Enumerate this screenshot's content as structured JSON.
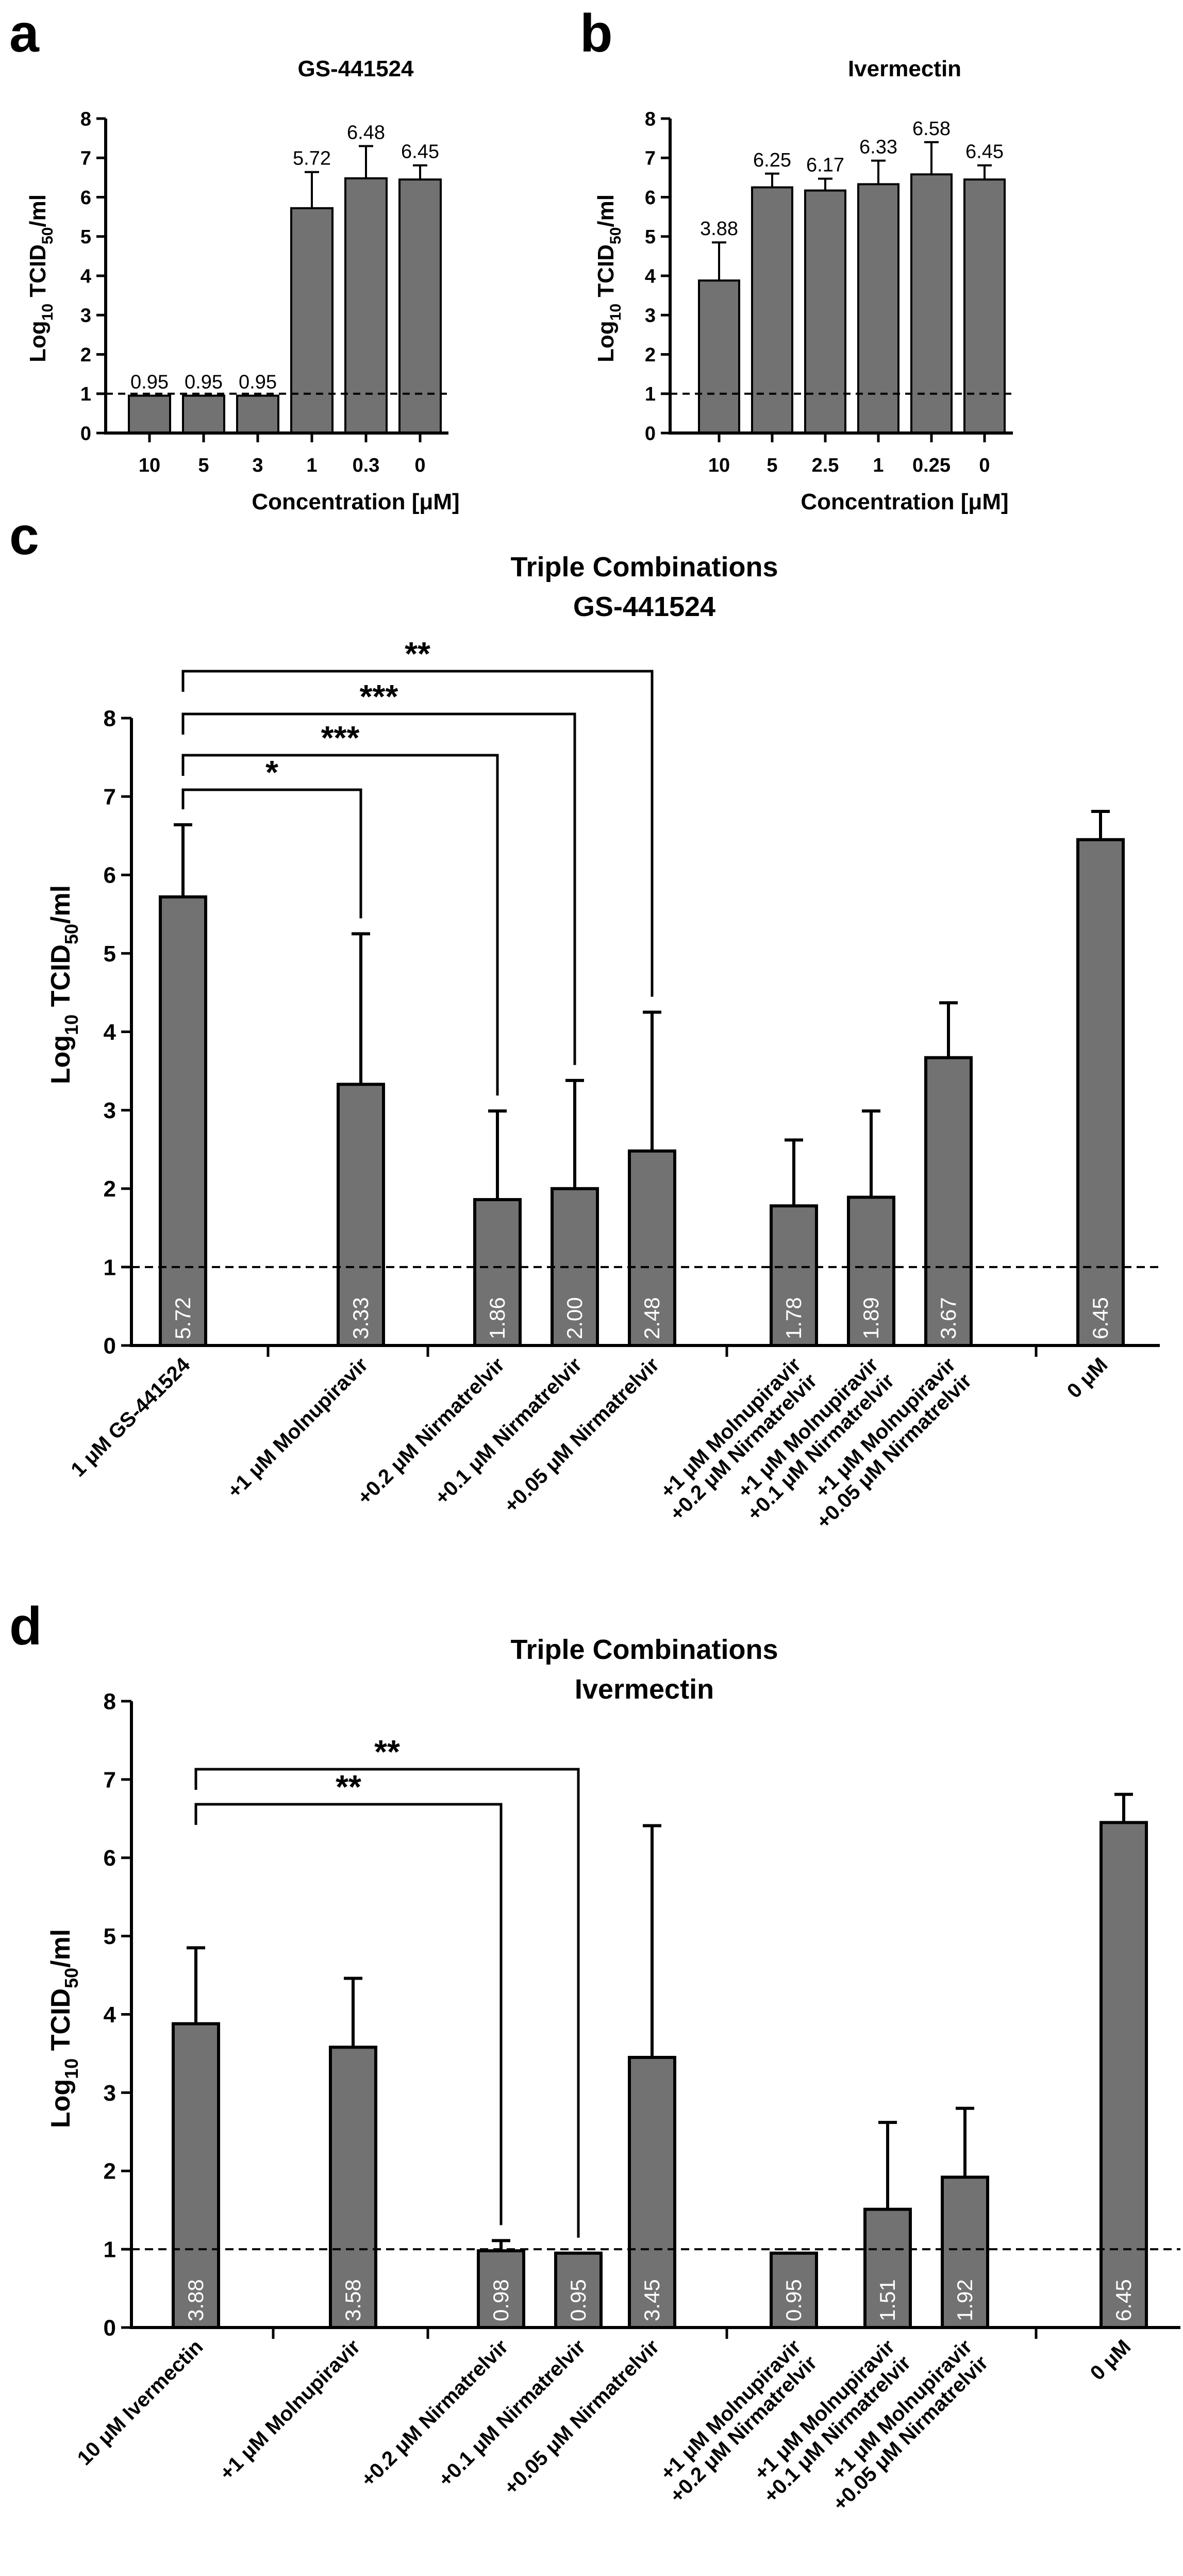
{
  "colors": {
    "bar": "#727272",
    "stroke": "#000000",
    "background": "#ffffff"
  },
  "chart_data": [
    {
      "panel": "a",
      "type": "bar",
      "title": "GS-441524",
      "xlabel": "Concentration [μM]",
      "ylabel": "Log10 TCID50/ml",
      "ylabel_parts": {
        "a": "Log",
        "b": "10",
        "c": " TCID",
        "d": "50",
        "e": "/ml"
      },
      "ylim": [
        0,
        8
      ],
      "yticks": [
        "0",
        "1",
        "2",
        "3",
        "4",
        "5",
        "6",
        "7",
        "8"
      ],
      "threshold": 1,
      "categories": [
        "10",
        "5",
        "3",
        "1",
        "0.3",
        "0"
      ],
      "values": [
        0.95,
        0.95,
        0.95,
        5.72,
        6.48,
        6.45
      ],
      "errors": [
        0,
        0,
        0,
        0.92,
        0.82,
        0.36
      ],
      "value_labels": [
        "0.95",
        "0.95",
        "0.95",
        "5.72",
        "6.48",
        "6.45"
      ]
    },
    {
      "panel": "b",
      "type": "bar",
      "title": "Ivermectin",
      "xlabel": "Concentration [μM]",
      "ylabel": "Log10 TCID50/ml",
      "ylabel_parts": {
        "a": "Log",
        "b": "10",
        "c": " TCID",
        "d": "50",
        "e": "/ml"
      },
      "ylim": [
        0,
        8
      ],
      "yticks": [
        "0",
        "1",
        "2",
        "3",
        "4",
        "5",
        "6",
        "7",
        "8"
      ],
      "threshold": 1,
      "categories": [
        "10",
        "5",
        "2.5",
        "1",
        "0.25",
        "0"
      ],
      "values": [
        3.88,
        6.25,
        6.17,
        6.33,
        6.58,
        6.45
      ],
      "errors": [
        0.97,
        0.35,
        0.3,
        0.6,
        0.82,
        0.36
      ],
      "value_labels": [
        "3.88",
        "6.25",
        "6.17",
        "6.33",
        "6.58",
        "6.45"
      ]
    },
    {
      "panel": "c",
      "type": "bar",
      "title": "Triple Combinations",
      "subtitle": "GS-441524",
      "ylabel": "Log10 TCID50/ml",
      "ylabel_parts": {
        "a": "Log",
        "b": "10",
        "c": " TCID",
        "d": "50",
        "e": "/ml"
      },
      "ylim": [
        0,
        8
      ],
      "yticks": [
        "0",
        "1",
        "2",
        "3",
        "4",
        "5",
        "6",
        "7",
        "8"
      ],
      "threshold": 1,
      "categories": [
        "1 μM GS-441524",
        "+1 μM Molnupiravir",
        "+0.2 μM Nirmatrelvir",
        "+0.1 μM Nirmatrelvir",
        "+0.05 μM Nirmatrelvir",
        "+1 μM Molnupiravir\n+0.2 μM Nirmatrelvir",
        "+1 μM Molnupiravir\n+0.1 μM Nirmatrelvir",
        "+1 μM Molnupiravir\n+0.05 μM Nirmatrelvir",
        "0 μM"
      ],
      "values": [
        5.72,
        3.33,
        1.86,
        2.0,
        2.48,
        1.78,
        1.89,
        3.67,
        6.45
      ],
      "errors": [
        0.92,
        1.92,
        1.13,
        1.38,
        1.77,
        0.84,
        1.1,
        0.7,
        0.36
      ],
      "value_labels": [
        "5.72",
        "3.33",
        "1.86",
        "2.00",
        "2.48",
        "1.78",
        "1.89",
        "3.67",
        "6.45"
      ],
      "significance": [
        {
          "from": 0,
          "to": 1,
          "label": "*"
        },
        {
          "from": 0,
          "to": 2,
          "label": "***"
        },
        {
          "from": 0,
          "to": 3,
          "label": "***"
        },
        {
          "from": 0,
          "to": 4,
          "label": "**"
        }
      ]
    },
    {
      "panel": "d",
      "type": "bar",
      "title": "Triple Combinations",
      "subtitle": "Ivermectin",
      "ylabel": "Log10 TCID50/ml",
      "ylabel_parts": {
        "a": "Log",
        "b": "10",
        "c": " TCID",
        "d": "50",
        "e": "/ml"
      },
      "ylim": [
        0,
        8
      ],
      "yticks": [
        "0",
        "1",
        "2",
        "3",
        "4",
        "5",
        "6",
        "7",
        "8"
      ],
      "threshold": 1,
      "categories": [
        "10 μM Ivermectin",
        "+1 μM Molnupiravir",
        "+0.2 μM Nirmatrelvir",
        "+0.1 μM Nirmatrelvir",
        "+0.05 μM Nirmatrelvir",
        "+1 μM Molnupiravir\n+0.2 μM Nirmatrelvir",
        "+1 μM Molnupiravir\n+0.1 μM Nirmatrelvir",
        "+1 μM Molnupiravir\n+0.05 μM Nirmatrelvir",
        "0 μM"
      ],
      "values": [
        3.88,
        3.58,
        0.98,
        0.95,
        3.45,
        0.95,
        1.51,
        1.92,
        6.45
      ],
      "errors": [
        0.97,
        0.88,
        0.13,
        0,
        2.96,
        0,
        1.11,
        0.88,
        0.36
      ],
      "value_labels": [
        "3.88",
        "3.58",
        "0.98",
        "0.95",
        "3.45",
        "0.95",
        "1.51",
        "1.92",
        "6.45"
      ],
      "significance": [
        {
          "from": 0,
          "to": 2,
          "label": "**"
        },
        {
          "from": 0,
          "to": 3,
          "label": "**"
        }
      ]
    }
  ]
}
